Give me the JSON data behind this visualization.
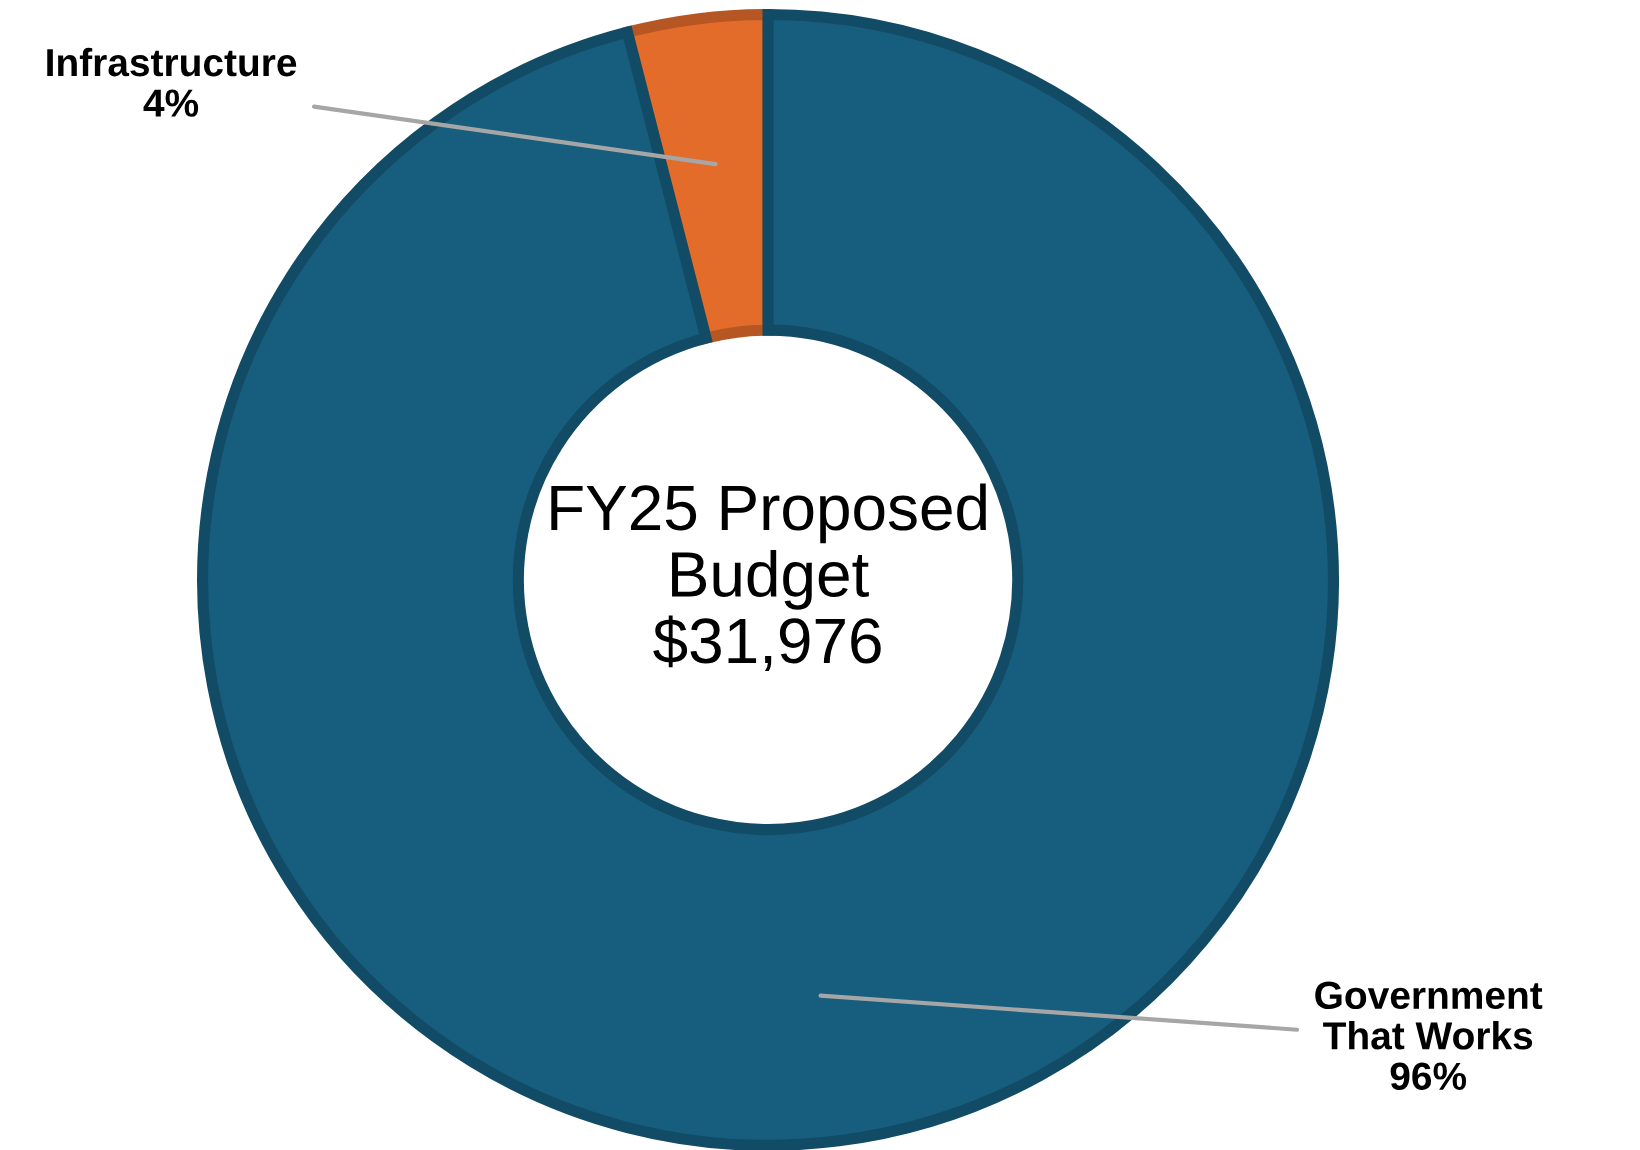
{
  "chart_data": {
    "type": "donut",
    "title": "FY25 Proposed\nBudget\n$31,976",
    "categories": [
      "Infrastructure",
      "Government That Works"
    ],
    "values": [
      4,
      96
    ],
    "colors": [
      "#e36c2b",
      "#175e7e"
    ],
    "value_labels": [
      "4%",
      "96%"
    ]
  }
}
